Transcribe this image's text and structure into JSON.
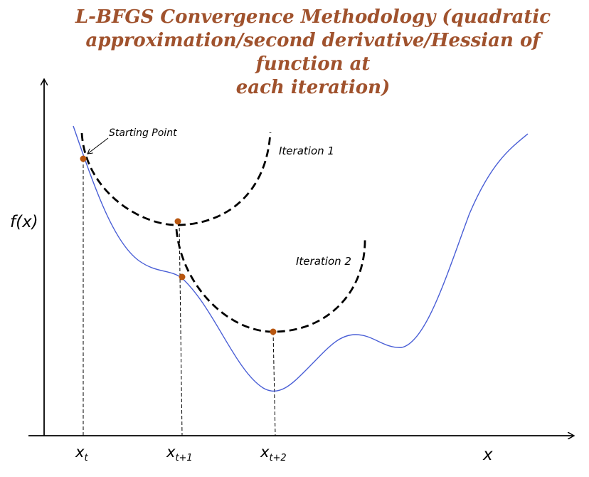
{
  "title": {
    "line1": "L-BFGS Convergence Methodology (quadratic",
    "line2": "approximation/second derivative/Hessian of function at",
    "line3": "each iteration)"
  },
  "axes": {
    "y_label": "f(x)",
    "x_label": "x"
  },
  "annotations": {
    "starting_point": "Starting Point",
    "iteration_1": "Iteration 1",
    "iteration_2": "Iteration 2"
  },
  "x_ticks": [
    {
      "base": "x",
      "sub": "t"
    },
    {
      "base": "x",
      "sub": "t+1"
    },
    {
      "base": "x",
      "sub": "t+2"
    }
  ],
  "colors": {
    "title": "#a0522d",
    "function_curve": "#4a5fd6",
    "quadratic_approx": "#000000",
    "points": "#b8560f",
    "axes": "#000000"
  }
}
